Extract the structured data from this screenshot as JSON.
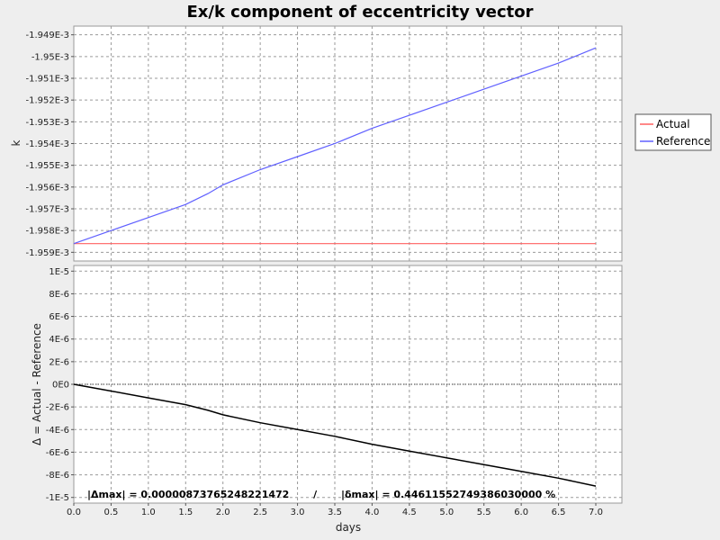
{
  "chart_data": {
    "title": "Ex/k component of eccentricity vector",
    "xlabel": "days",
    "x_ticks": [
      "0.0",
      "0.5",
      "1.0",
      "1.5",
      "2.0",
      "2.5",
      "3.0",
      "3.5",
      "4.0",
      "4.5",
      "5.0",
      "5.5",
      "6.0",
      "6.5",
      "7.0"
    ],
    "xlim": [
      0,
      7.35
    ],
    "colors": {
      "actual": "#ff6060",
      "reference": "#6060ff",
      "delta": "#000000"
    },
    "legend": {
      "placement": "right",
      "items": [
        {
          "label": "Actual",
          "color": "#ff6060"
        },
        {
          "label": "Reference",
          "color": "#6060ff"
        }
      ]
    },
    "top": {
      "type": "line",
      "ylabel": "k",
      "ylim": [
        -0.0019594,
        -0.0019486
      ],
      "y_ticks": [
        "-1.949E-3",
        "-1.95E-3",
        "-1.951E-3",
        "-1.952E-3",
        "-1.953E-3",
        "-1.954E-3",
        "-1.955E-3",
        "-1.956E-3",
        "-1.957E-3",
        "-1.958E-3",
        "-1.959E-3"
      ],
      "y_tick_values": [
        -0.001949,
        -0.00195,
        -0.001951,
        -0.001952,
        -0.001953,
        -0.001954,
        -0.001955,
        -0.001956,
        -0.001957,
        -0.001958,
        -0.001959
      ],
      "series": [
        {
          "name": "Actual",
          "color": "#ff6060",
          "x": [
            0.0,
            7.0
          ],
          "y": [
            -0.0019586,
            -0.0019586
          ]
        },
        {
          "name": "Reference",
          "color": "#6060ff",
          "x": [
            0.0,
            0.5,
            1.0,
            1.5,
            1.8,
            2.0,
            2.5,
            3.0,
            3.5,
            4.0,
            4.5,
            5.0,
            5.5,
            6.0,
            6.5,
            7.0
          ],
          "y": [
            -0.0019586,
            -0.001958,
            -0.0019574,
            -0.0019568,
            -0.0019563,
            -0.0019559,
            -0.0019552,
            -0.0019546,
            -0.001954,
            -0.0019533,
            -0.0019527,
            -0.0019521,
            -0.0019515,
            -0.0019509,
            -0.0019503,
            -0.0019496
          ]
        }
      ]
    },
    "bottom": {
      "type": "line",
      "ylabel": "Δ = Actual - Reference",
      "ylim": [
        -1.05e-05,
        1.05e-05
      ],
      "y_ticks": [
        "1E-5",
        "8E-6",
        "6E-6",
        "4E-6",
        "2E-6",
        "0E0",
        "-2E-6",
        "-4E-6",
        "-6E-6",
        "-8E-6",
        "-1E-5"
      ],
      "y_tick_values": [
        1e-05,
        8e-06,
        6e-06,
        4e-06,
        2e-06,
        0,
        -2e-06,
        -4e-06,
        -6e-06,
        -8e-06,
        -1e-05
      ],
      "zero_line": true,
      "series": [
        {
          "name": "Δ",
          "color": "#000000",
          "x": [
            0.0,
            0.5,
            1.0,
            1.5,
            1.8,
            2.0,
            2.5,
            3.0,
            3.5,
            4.0,
            4.5,
            5.0,
            5.5,
            6.0,
            6.5,
            7.0
          ],
          "y": [
            0.0,
            -6e-07,
            -1.2e-06,
            -1.8e-06,
            -2.3e-06,
            -2.7e-06,
            -3.4e-06,
            -4e-06,
            -4.6e-06,
            -5.3e-06,
            -5.9e-06,
            -6.5e-06,
            -7.1e-06,
            -7.7e-06,
            -8.3e-06,
            -9e-06
          ]
        }
      ],
      "annotation": "|Δmax| = 0.00000873765248221472       /       |δmax| = 0.44611552749386030000 %"
    }
  }
}
